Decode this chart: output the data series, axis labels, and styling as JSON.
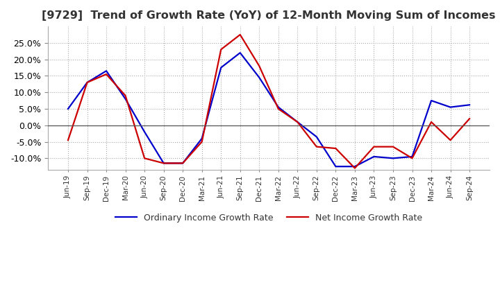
{
  "title": "[9729]  Trend of Growth Rate (YoY) of 12-Month Moving Sum of Incomes",
  "title_fontsize": 11.5,
  "background_color": "#ffffff",
  "grid_color": "#aaaaaa",
  "ylim": [
    -0.135,
    0.3
  ],
  "yticks": [
    -0.1,
    -0.05,
    0.0,
    0.05,
    0.1,
    0.15,
    0.2,
    0.25
  ],
  "x_labels": [
    "Jun-19",
    "Sep-19",
    "Dec-19",
    "Mar-20",
    "Jun-20",
    "Sep-20",
    "Dec-20",
    "Mar-21",
    "Jun-21",
    "Sep-21",
    "Dec-21",
    "Mar-22",
    "Jun-22",
    "Sep-22",
    "Dec-22",
    "Mar-23",
    "Jun-23",
    "Sep-23",
    "Dec-23",
    "Mar-24",
    "Jun-24",
    "Sep-24"
  ],
  "ordinary_income": [
    0.05,
    0.13,
    0.165,
    0.08,
    -0.02,
    -0.115,
    -0.115,
    -0.04,
    0.175,
    0.22,
    0.145,
    0.055,
    0.01,
    -0.035,
    -0.125,
    -0.125,
    -0.095,
    -0.1,
    -0.095,
    0.075,
    0.055,
    0.062
  ],
  "net_income": [
    -0.045,
    0.13,
    0.155,
    0.09,
    -0.1,
    -0.115,
    -0.115,
    -0.05,
    0.23,
    0.275,
    0.18,
    0.05,
    0.01,
    -0.065,
    -0.07,
    -0.13,
    -0.065,
    -0.065,
    -0.1,
    0.01,
    -0.045,
    0.02
  ],
  "line_ordinary_color": "#0000cc",
  "line_net_color": "#cc0000",
  "line_width": 1.6,
  "legend_ordinary": "Ordinary Income Growth Rate",
  "legend_net": "Net Income Growth Rate",
  "figsize": [
    7.2,
    4.4
  ],
  "dpi": 100
}
